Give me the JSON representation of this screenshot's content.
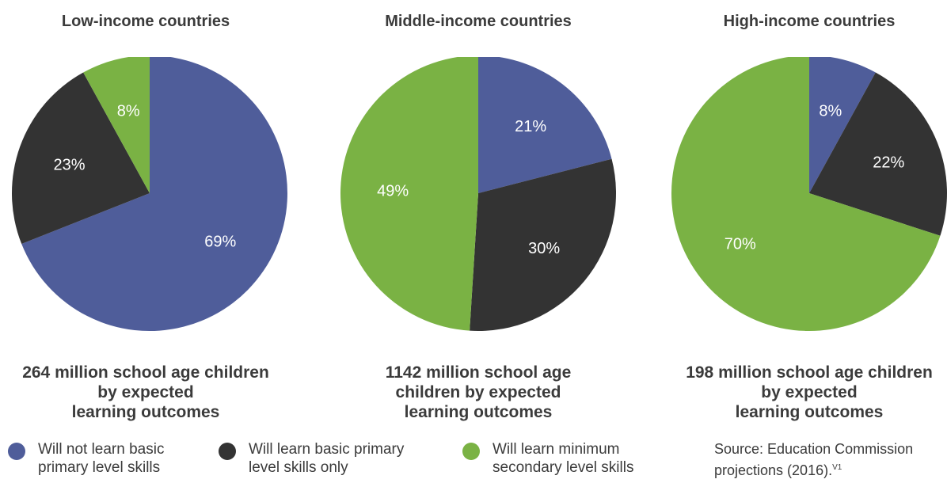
{
  "colors": {
    "not_basic": "#4f5d9a",
    "basic_only": "#333333",
    "min_secondary": "#7ab244"
  },
  "chart_data": [
    {
      "type": "pie",
      "title": "Low-income countries",
      "caption_lines": [
        "264 million school age children",
        "by expected",
        "learning outcomes"
      ],
      "slices": [
        {
          "category": "Will not learn basic primary level skills",
          "value": 69,
          "label": "69%"
        },
        {
          "category": "Will learn basic primary level skills only",
          "value": 23,
          "label": "23%"
        },
        {
          "category": "Will learn minimum secondary level skills",
          "value": 8,
          "label": "8%"
        }
      ]
    },
    {
      "type": "pie",
      "title": "Middle-income countries",
      "caption_lines": [
        "1142 million school age",
        "children by expected",
        "learning outcomes"
      ],
      "slices": [
        {
          "category": "Will not learn basic primary level skills",
          "value": 21,
          "label": "21%"
        },
        {
          "category": "Will learn basic primary level skills only",
          "value": 30,
          "label": "30%"
        },
        {
          "category": "Will learn minimum secondary level skills",
          "value": 49,
          "label": "49%"
        }
      ]
    },
    {
      "type": "pie",
      "title": "High-income countries",
      "caption_lines": [
        "198 million school age children",
        "by expected",
        "learning outcomes"
      ],
      "slices": [
        {
          "category": "Will not learn basic primary level skills",
          "value": 8,
          "label": "8%"
        },
        {
          "category": "Will learn basic primary level skills only",
          "value": 22,
          "label": "22%"
        },
        {
          "category": "Will learn minimum secondary level skills",
          "value": 70,
          "label": "70%"
        }
      ]
    }
  ],
  "legend": [
    {
      "lines": [
        "Will not learn basic",
        "primary level skills"
      ]
    },
    {
      "lines": [
        "Will learn basic primary",
        "level skills only"
      ]
    },
    {
      "lines": [
        "Will learn minimum",
        "secondary level skills"
      ]
    }
  ],
  "source": {
    "lines": [
      "Source: Education Commission",
      "projections (2016)."
    ],
    "superscript": "V1"
  }
}
